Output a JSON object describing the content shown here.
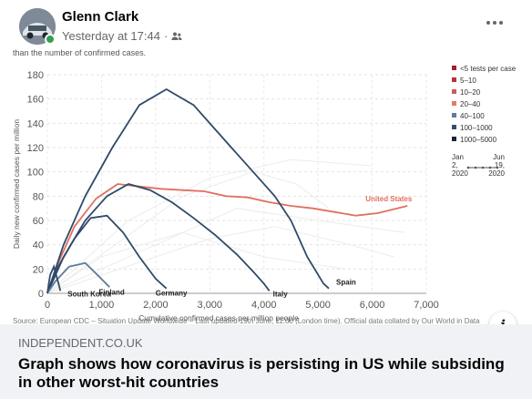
{
  "post": {
    "author": "Glenn Clark",
    "timestamp": "Yesterday at 17:44",
    "separator": "·",
    "audience_icon": "friends-icon",
    "more_icon": "more-options-icon"
  },
  "chart": {
    "caption_top": "than the number of confirmed cases.",
    "source_line": "Source: European CDC – Situation Update Worldwide – Last updated 19th June, 11:00 (London time). Official data collated by Our World in Data"
  },
  "chart_data": {
    "type": "line",
    "title": "",
    "xlabel": "Cumulative confirmed cases per million people",
    "ylabel": "Daily new confirmed cases per million",
    "xlim": [
      0,
      7000
    ],
    "ylim": [
      0,
      180
    ],
    "x_ticks": [
      "0",
      "1,000",
      "2,000",
      "3,000",
      "4,000",
      "5,000",
      "6,000",
      "7,000"
    ],
    "y_ticks": [
      "0",
      "20",
      "40",
      "60",
      "80",
      "100",
      "120",
      "140",
      "160",
      "180"
    ],
    "grid": true,
    "legend_position": "right",
    "legend": [
      {
        "label": "<5 tests per case",
        "color": "#a3202f"
      },
      {
        "label": "5–10",
        "color": "#b8323f"
      },
      {
        "label": "10–20",
        "color": "#cc5a5e"
      },
      {
        "label": "20–40",
        "color": "#e67a68"
      },
      {
        "label": "40–100",
        "color": "#5f7c9c"
      },
      {
        "label": "100–1000",
        "color": "#34506e"
      },
      {
        "label": "1000–5000",
        "color": "#16253a"
      }
    ],
    "time_legend": {
      "start": "Jan 2, 2020",
      "end": "Jun 19, 2020",
      "start_lines": [
        "Jan",
        "2,",
        "2020"
      ],
      "end_lines": [
        "Jun",
        "19,",
        "2020"
      ]
    },
    "series": [
      {
        "name": "United States",
        "color": "#e0705f",
        "x": [
          0,
          200,
          500,
          900,
          1300,
          1700,
          2100,
          2500,
          2900,
          3300,
          3700,
          4100,
          4500,
          4900,
          5300,
          5700,
          6100,
          6650
        ],
        "y": [
          0,
          25,
          55,
          78,
          90,
          88,
          86,
          85,
          84,
          80,
          79,
          75,
          72,
          70,
          67,
          64,
          66,
          72
        ]
      },
      {
        "name": "Spain",
        "color": "#2f4a68",
        "x": [
          0,
          300,
          700,
          1200,
          1700,
          2200,
          2700,
          3100,
          3500,
          3900,
          4200,
          4500,
          4800,
          5100,
          5200
        ],
        "y": [
          0,
          40,
          80,
          120,
          155,
          168,
          155,
          135,
          115,
          95,
          80,
          60,
          30,
          8,
          4
        ]
      },
      {
        "name": "Italy",
        "color": "#2f4a68",
        "x": [
          0,
          300,
          700,
          1100,
          1500,
          1900,
          2300,
          2700,
          3100,
          3500,
          3800,
          4000,
          4100
        ],
        "y": [
          0,
          30,
          60,
          80,
          90,
          85,
          75,
          62,
          48,
          32,
          18,
          8,
          2
        ]
      },
      {
        "name": "Germany",
        "color": "#2f4a68",
        "x": [
          0,
          200,
          500,
          800,
          1100,
          1400,
          1700,
          2000,
          2200
        ],
        "y": [
          0,
          22,
          45,
          62,
          64,
          50,
          30,
          12,
          4
        ]
      },
      {
        "name": "Finland",
        "color": "#5f7c9c",
        "x": [
          0,
          150,
          400,
          700,
          950,
          1150
        ],
        "y": [
          0,
          10,
          22,
          25,
          14,
          5
        ]
      },
      {
        "name": "South Korea",
        "color": "#2f4a68",
        "x": [
          0,
          50,
          120,
          200,
          240
        ],
        "y": [
          0,
          15,
          22,
          9,
          2
        ]
      }
    ],
    "annotations": [
      "United States",
      "Spain",
      "Italy",
      "Germany",
      "Finland",
      "South Korea"
    ]
  },
  "link": {
    "domain": "INDEPENDENT.CO.UK",
    "headline": "Graph shows how coronavirus is persisting in US while subsiding in other worst-hit countries",
    "info_label": "i"
  }
}
